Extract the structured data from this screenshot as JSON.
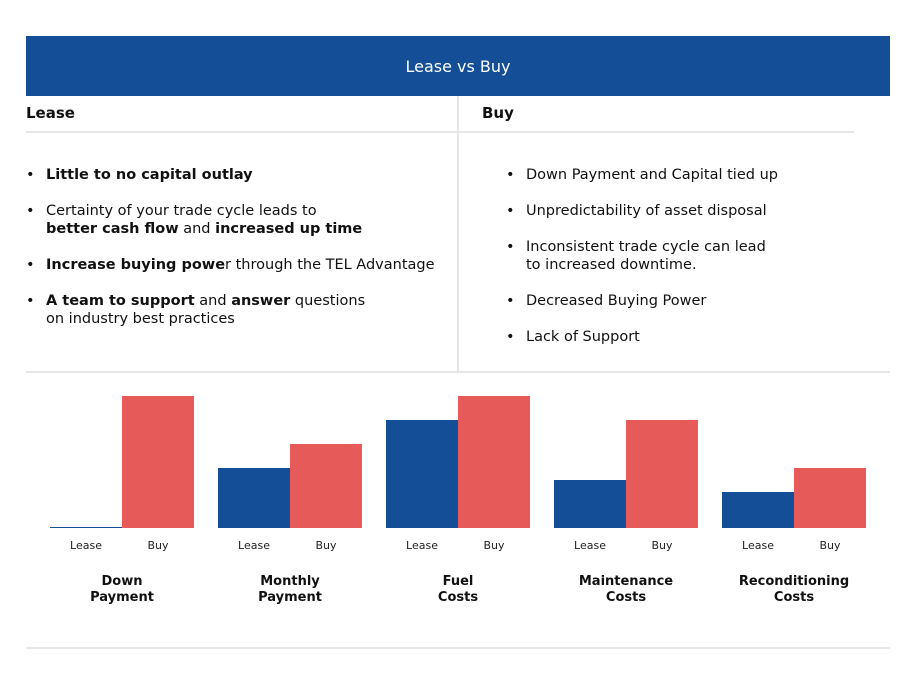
{
  "title": "Lease vs Buy",
  "lease": {
    "heading": "Lease",
    "items": [
      [
        {
          "t": "Little to no capital outlay",
          "b": true
        }
      ],
      [
        {
          "t": "Certainty of your trade cycle leads to",
          "b": false
        },
        {
          "br": true
        },
        {
          "t": "better cash flow",
          "b": true
        },
        {
          "t": " and ",
          "b": false
        },
        {
          "t": "increased up time",
          "b": true
        }
      ],
      [
        {
          "t": "Increase buying powe",
          "b": true
        },
        {
          "t": "r through the TEL Advantage",
          "b": false
        }
      ],
      [
        {
          "t": "A team to support",
          "b": true
        },
        {
          "t": " and ",
          "b": false
        },
        {
          "t": "answer",
          "b": true
        },
        {
          "t": " questions",
          "b": false
        },
        {
          "br": true
        },
        {
          "t": "on industry best practices",
          "b": false
        }
      ]
    ]
  },
  "buy": {
    "heading": "Buy",
    "items": [
      [
        {
          "t": "Down Payment and Capital tied up",
          "b": false
        }
      ],
      [
        {
          "t": "Unpredictability of asset disposal",
          "b": false
        }
      ],
      [
        {
          "t": "Inconsistent trade cycle can lead",
          "b": false
        },
        {
          "br": true
        },
        {
          "t": "to increased downtime.",
          "b": false
        }
      ],
      [
        {
          "t": "Decreased Buying Power",
          "b": false
        }
      ],
      [
        {
          "t": "Lack of Support",
          "b": false
        }
      ]
    ]
  },
  "chart_data": {
    "type": "bar",
    "title": "",
    "categories": [
      [
        "Down",
        "Payment"
      ],
      [
        "Monthly",
        "Payment"
      ],
      [
        "Fuel",
        "Costs"
      ],
      [
        "Maintenance",
        "Costs"
      ],
      [
        "Reconditioning",
        "Costs"
      ]
    ],
    "series": [
      {
        "name": "Lease",
        "color": "#134e96",
        "values": [
          0.05,
          5,
          9,
          4,
          3
        ]
      },
      {
        "name": "Buy",
        "color": "#e65a5a",
        "values": [
          11,
          7,
          11,
          9,
          5
        ]
      }
    ],
    "ylim": [
      0,
      11
    ],
    "grid": false,
    "xlabel": "",
    "ylabel": ""
  }
}
